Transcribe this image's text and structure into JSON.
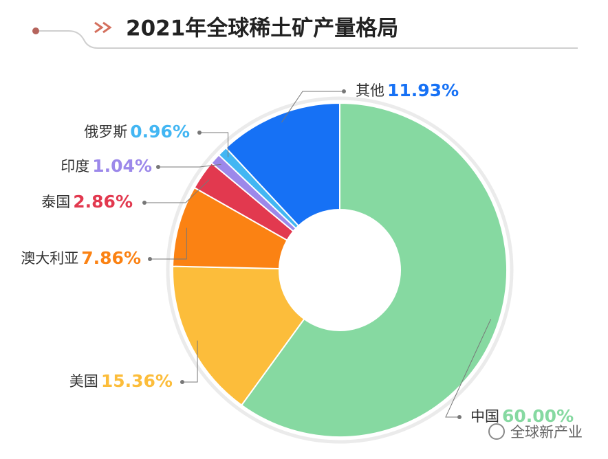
{
  "chart_data": {
    "type": "donut",
    "title": "2021年全球稀土矿产量格局",
    "categories": [
      "中国",
      "美国",
      "澳大利亚",
      "泰国",
      "印度",
      "俄罗斯",
      "其他"
    ],
    "values": [
      60.0,
      15.36,
      7.86,
      2.86,
      1.04,
      0.96,
      11.93
    ],
    "value_labels": [
      "60.00%",
      "15.36%",
      "7.86%",
      "2.86%",
      "1.04%",
      "0.96%",
      "11.93%"
    ],
    "colors": [
      "#86d9a1",
      "#fcbd3b",
      "#fb8213",
      "#e2394f",
      "#9c88ea",
      "#42b6f3",
      "#1671f5"
    ]
  },
  "watermark": "全球新产业"
}
